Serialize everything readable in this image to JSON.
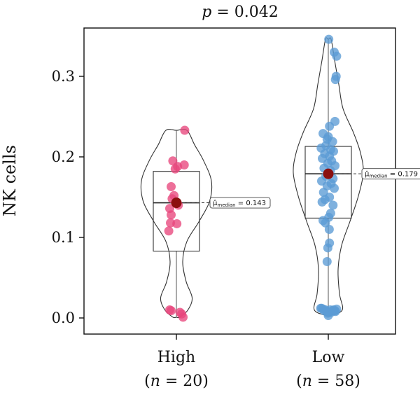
{
  "chart_data": {
    "type": "violin",
    "title": "p = 0.042",
    "title_parts": {
      "p_symbol": "p",
      "p_rest": " = 0.042"
    },
    "ylabel": "NK cells",
    "ylim": [
      -0.02,
      0.36
    ],
    "yticks": [
      0.0,
      0.1,
      0.2,
      0.3
    ],
    "ytick_labels": [
      "0.0",
      "0.1",
      "0.2",
      "0.3"
    ],
    "grid": false,
    "median_marker_color": "#8b0f0f",
    "groups": [
      {
        "name": "High",
        "n_label": "n",
        "n_value": " = 20",
        "color": "#e8467c",
        "box": {
          "q1": 0.083,
          "median": 0.143,
          "q3": 0.182,
          "whisker_low": 0.001,
          "whisker_high": 0.233
        },
        "median_label": "μ̂median = 0.143",
        "median_label_main": "μ̂",
        "median_label_sub": "median",
        "median_label_value": " = 0.143",
        "violin": {
          "y": [
            0.001,
            0.01,
            0.025,
            0.045,
            0.07,
            0.095,
            0.12,
            0.145,
            0.17,
            0.195,
            0.215,
            0.233
          ],
          "width": [
            0.1,
            0.33,
            0.45,
            0.28,
            0.18,
            0.3,
            0.65,
            0.95,
            1.0,
            0.78,
            0.52,
            0.3
          ]
        },
        "points": [
          {
            "y": 0.233,
            "j": 0.35
          },
          {
            "y": 0.195,
            "j": -0.15
          },
          {
            "y": 0.19,
            "j": 0.33
          },
          {
            "y": 0.188,
            "j": 0.05
          },
          {
            "y": 0.185,
            "j": -0.05
          },
          {
            "y": 0.163,
            "j": -0.22
          },
          {
            "y": 0.152,
            "j": -0.1
          },
          {
            "y": 0.148,
            "j": -0.18
          },
          {
            "y": 0.143,
            "j": 0.0
          },
          {
            "y": 0.14,
            "j": 0.08
          },
          {
            "y": 0.136,
            "j": -0.28
          },
          {
            "y": 0.128,
            "j": -0.22
          },
          {
            "y": 0.118,
            "j": -0.25
          },
          {
            "y": 0.117,
            "j": 0.02
          },
          {
            "y": 0.108,
            "j": -0.32
          },
          {
            "y": 0.01,
            "j": -0.28
          },
          {
            "y": 0.009,
            "j": -0.22
          },
          {
            "y": 0.007,
            "j": 0.15
          },
          {
            "y": 0.005,
            "j": 0.22
          },
          {
            "y": 0.001,
            "j": 0.28
          }
        ]
      },
      {
        "name": "Low",
        "n_label": "n",
        "n_value": " = 58",
        "color": "#5b9bd5",
        "box": {
          "q1": 0.124,
          "median": 0.179,
          "q3": 0.213,
          "whisker_low": 0.003,
          "whisker_high": 0.346
        },
        "median_label": "μ̂median = 0.179",
        "median_label_main": "μ̂",
        "median_label_sub": "median",
        "median_label_value": " = 0.179",
        "violin": {
          "y": [
            0.003,
            0.01,
            0.03,
            0.06,
            0.09,
            0.12,
            0.15,
            0.18,
            0.205,
            0.23,
            0.26,
            0.29,
            0.32,
            0.346
          ],
          "width": [
            0.05,
            0.4,
            0.32,
            0.28,
            0.38,
            0.62,
            0.85,
            1.0,
            0.92,
            0.72,
            0.42,
            0.3,
            0.18,
            0.08
          ]
        },
        "points": [
          {
            "y": 0.346,
            "j": 0.02
          },
          {
            "y": 0.33,
            "j": 0.25
          },
          {
            "y": 0.325,
            "j": 0.35
          },
          {
            "y": 0.3,
            "j": 0.33
          },
          {
            "y": 0.296,
            "j": 0.3
          },
          {
            "y": 0.244,
            "j": 0.28
          },
          {
            "y": 0.238,
            "j": 0.05
          },
          {
            "y": 0.229,
            "j": -0.22
          },
          {
            "y": 0.225,
            "j": 0.0
          },
          {
            "y": 0.222,
            "j": -0.05
          },
          {
            "y": 0.219,
            "j": 0.18
          },
          {
            "y": 0.214,
            "j": -0.1
          },
          {
            "y": 0.211,
            "j": -0.3
          },
          {
            "y": 0.209,
            "j": 0.1
          },
          {
            "y": 0.207,
            "j": 0.22
          },
          {
            "y": 0.204,
            "j": -0.15
          },
          {
            "y": 0.201,
            "j": 0.05
          },
          {
            "y": 0.198,
            "j": -0.25
          },
          {
            "y": 0.195,
            "j": 0.14
          },
          {
            "y": 0.192,
            "j": -0.02
          },
          {
            "y": 0.189,
            "j": 0.28
          },
          {
            "y": 0.186,
            "j": -0.18
          },
          {
            "y": 0.183,
            "j": 0.09
          },
          {
            "y": 0.179,
            "j": 0.0
          },
          {
            "y": 0.176,
            "j": -0.1
          },
          {
            "y": 0.173,
            "j": 0.2
          },
          {
            "y": 0.17,
            "j": -0.28
          },
          {
            "y": 0.167,
            "j": 0.12
          },
          {
            "y": 0.164,
            "j": -0.05
          },
          {
            "y": 0.161,
            "j": 0.25
          },
          {
            "y": 0.156,
            "j": -0.2
          },
          {
            "y": 0.15,
            "j": 0.05
          },
          {
            "y": 0.147,
            "j": -0.14
          },
          {
            "y": 0.144,
            "j": -0.26
          },
          {
            "y": 0.14,
            "j": 0.2
          },
          {
            "y": 0.13,
            "j": 0.1
          },
          {
            "y": 0.125,
            "j": 0.02
          },
          {
            "y": 0.121,
            "j": -0.22
          },
          {
            "y": 0.118,
            "j": -0.12
          },
          {
            "y": 0.11,
            "j": 0.04
          },
          {
            "y": 0.093,
            "j": 0.05
          },
          {
            "y": 0.087,
            "j": -0.02
          },
          {
            "y": 0.07,
            "j": -0.05
          },
          {
            "y": 0.012,
            "j": -0.32
          },
          {
            "y": 0.011,
            "j": -0.22
          },
          {
            "y": 0.01,
            "j": -0.12
          },
          {
            "y": 0.01,
            "j": 0.08
          },
          {
            "y": 0.009,
            "j": 0.18
          },
          {
            "y": 0.009,
            "j": 0.28
          },
          {
            "y": 0.008,
            "j": -0.05
          },
          {
            "y": 0.007,
            "j": 0.12
          },
          {
            "y": 0.006,
            "j": -0.02
          },
          {
            "y": 0.003,
            "j": 0.0
          },
          {
            "y": 0.008,
            "j": 0.3
          },
          {
            "y": 0.011,
            "j": 0.35
          },
          {
            "y": 0.012,
            "j": -0.28
          },
          {
            "y": 0.009,
            "j": -0.18
          },
          {
            "y": 0.01,
            "j": 0.22
          }
        ]
      }
    ]
  }
}
